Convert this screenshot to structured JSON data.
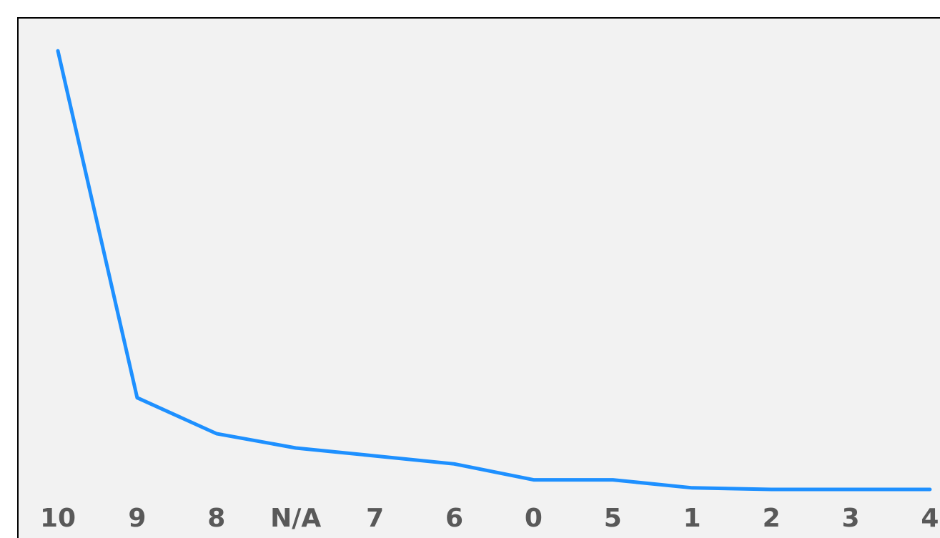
{
  "chart_data": {
    "type": "line",
    "title": "",
    "xlabel": "",
    "ylabel": "",
    "categories": [
      "10",
      "9",
      "8",
      "N/A",
      "7",
      "6",
      "0",
      "5",
      "1",
      "2",
      "3",
      "4"
    ],
    "series": [
      {
        "values": [
          55,
          11.5,
          7,
          5.2,
          4.2,
          3.2,
          1.2,
          1.2,
          0.2,
          0,
          0,
          0
        ]
      }
    ],
    "ylim": [
      0,
      56
    ],
    "grid": false,
    "legend": "none",
    "colors": {
      "line": "#1e90ff",
      "tick_label": "#595959",
      "background": "#f2f2f2"
    }
  }
}
